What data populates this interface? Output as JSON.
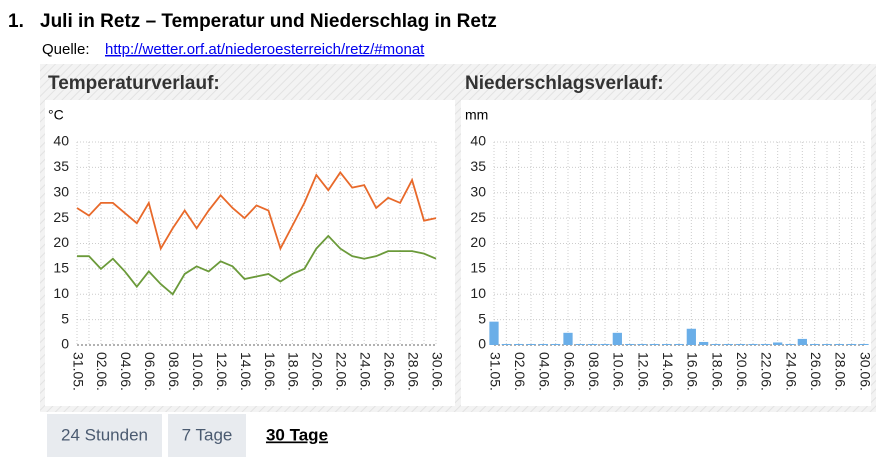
{
  "header": {
    "number": "1.",
    "title": "Juli in Retz – Temperatur und Niederschlag in Retz",
    "source_label": "Quelle:",
    "source_link": "http://wetter.orf.at/niederoesterreich/retz/#monat"
  },
  "chart_data": [
    {
      "type": "line",
      "title": "Temperaturverlauf:",
      "y_label": "°C",
      "categories": [
        "31.05.",
        null,
        "02.06.",
        null,
        "04.06.",
        null,
        "06.06.",
        null,
        "08.06.",
        null,
        "10.06.",
        null,
        "12.06.",
        null,
        "14.06.",
        null,
        "16.06.",
        null,
        "18.06.",
        null,
        "20.06.",
        null,
        "22.06.",
        null,
        "24.06.",
        null,
        "26.06.",
        null,
        "28.06.",
        null,
        "30.06."
      ],
      "series": [
        {
          "color": "#e8692a",
          "values": [
            27,
            25.5,
            28,
            28,
            26,
            24,
            28,
            19,
            23,
            26.5,
            23,
            26.5,
            29.5,
            27,
            25,
            27.5,
            26.5,
            19,
            23.5,
            28,
            33.5,
            30.5,
            34,
            31,
            31.5,
            27,
            29,
            28,
            32.5,
            24.5,
            25
          ]
        },
        {
          "color": "#6b9a3a",
          "values": [
            17.5,
            17.5,
            15,
            17,
            14.5,
            11.5,
            14.5,
            12,
            10,
            14,
            15.5,
            14.5,
            16.5,
            15.5,
            13,
            13.5,
            14,
            12.5,
            14,
            15,
            19,
            21.5,
            19,
            17.5,
            17,
            17.5,
            18.5,
            18.5,
            18.5,
            18,
            17
          ]
        }
      ],
      "ylim": [
        0,
        40
      ],
      "yticks": [
        0,
        5,
        10,
        15,
        20,
        25,
        30,
        35,
        40
      ],
      "grid": true
    },
    {
      "type": "bar",
      "title": "Niederschlagsverlauf:",
      "y_label": "mm",
      "categories": [
        "31.05.",
        null,
        "02.06.",
        null,
        "04.06.",
        null,
        "06.06.",
        null,
        "08.06.",
        null,
        "10.06.",
        null,
        "12.06.",
        null,
        "14.06.",
        null,
        "16.06.",
        null,
        "18.06.",
        null,
        "20.06.",
        null,
        "22.06.",
        null,
        "24.06.",
        null,
        "26.06.",
        null,
        "28.06.",
        null,
        "30.06."
      ],
      "values": [
        4.6,
        0.2,
        0.2,
        0.2,
        0.2,
        0.2,
        2.4,
        0.2,
        0.2,
        0.2,
        2.4,
        0.2,
        0.2,
        0.2,
        0.2,
        0.2,
        3.2,
        0.6,
        0.2,
        0.2,
        0.2,
        0.2,
        0.2,
        0.5,
        0.2,
        1.2,
        0.2,
        0.2,
        0.2,
        0.2,
        0.2
      ],
      "color": "#6aaee8",
      "ylim": [
        0,
        40
      ],
      "yticks": [
        0,
        5,
        10,
        15,
        20,
        25,
        30,
        35,
        40
      ],
      "grid": true
    }
  ],
  "tabs": [
    "24 Stunden",
    "7 Tage",
    "30 Tage"
  ]
}
